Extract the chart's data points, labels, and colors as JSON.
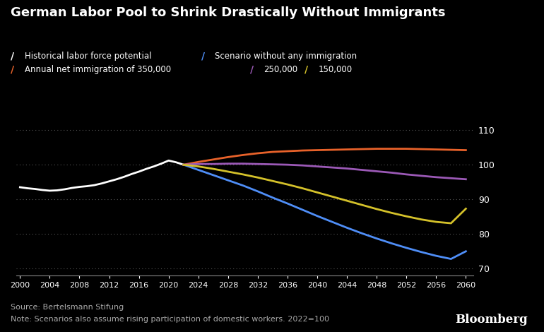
{
  "title": "German Labor Pool to Shrink Drastically Without Immigrants",
  "background_color": "#000000",
  "text_color": "#ffffff",
  "source_text": "Source: Bertelsmann Stifung",
  "note_text": "Note: Scenarios also assume rising participation of domestic workers. 2022=100",
  "bloomberg_text": "Bloomberg",
  "ylim": [
    68,
    114
  ],
  "yticks": [
    70,
    80,
    90,
    100,
    110
  ],
  "xlabel_years": [
    2000,
    2004,
    2008,
    2012,
    2016,
    2020,
    2024,
    2028,
    2032,
    2036,
    2040,
    2044,
    2048,
    2052,
    2056,
    2060
  ],
  "legend": [
    {
      "label": "Historical labor force potential",
      "color": "#ffffff"
    },
    {
      "label": "Scenario without any immigration",
      "color": "#4f8ef7"
    },
    {
      "label": "Annual net immigration of 350,000",
      "color": "#e8622a"
    },
    {
      "label": "250,000",
      "color": "#9b59b6"
    },
    {
      "label": "150,000",
      "color": "#d4c12a"
    }
  ],
  "historical": {
    "x": [
      2000,
      2001,
      2002,
      2003,
      2004,
      2005,
      2006,
      2007,
      2008,
      2009,
      2010,
      2011,
      2012,
      2013,
      2014,
      2015,
      2016,
      2017,
      2018,
      2019,
      2020,
      2021,
      2022
    ],
    "y": [
      93.5,
      93.2,
      93.0,
      92.7,
      92.5,
      92.6,
      92.9,
      93.3,
      93.6,
      93.8,
      94.1,
      94.6,
      95.2,
      95.8,
      96.5,
      97.3,
      98.0,
      98.8,
      99.5,
      100.3,
      101.2,
      100.7,
      100.0
    ]
  },
  "no_immigration": {
    "x": [
      2022,
      2024,
      2026,
      2028,
      2030,
      2032,
      2034,
      2036,
      2038,
      2040,
      2042,
      2044,
      2046,
      2048,
      2050,
      2052,
      2054,
      2056,
      2058,
      2060
    ],
    "y": [
      100.0,
      98.5,
      97.0,
      95.5,
      94.0,
      92.3,
      90.5,
      88.8,
      87.0,
      85.2,
      83.5,
      81.8,
      80.2,
      78.7,
      77.3,
      76.0,
      74.8,
      73.7,
      72.8,
      75.0
    ]
  },
  "imm_350k": {
    "x": [
      2022,
      2024,
      2026,
      2028,
      2030,
      2032,
      2034,
      2036,
      2038,
      2040,
      2042,
      2044,
      2046,
      2048,
      2050,
      2052,
      2054,
      2056,
      2058,
      2060
    ],
    "y": [
      100.0,
      100.8,
      101.5,
      102.2,
      102.8,
      103.3,
      103.7,
      103.9,
      104.1,
      104.2,
      104.3,
      104.4,
      104.5,
      104.6,
      104.6,
      104.6,
      104.5,
      104.4,
      104.3,
      104.2
    ]
  },
  "imm_250k": {
    "x": [
      2022,
      2024,
      2026,
      2028,
      2030,
      2032,
      2034,
      2036,
      2038,
      2040,
      2042,
      2044,
      2046,
      2048,
      2050,
      2052,
      2054,
      2056,
      2058,
      2060
    ],
    "y": [
      100.0,
      100.2,
      100.2,
      100.3,
      100.3,
      100.2,
      100.1,
      100.0,
      99.8,
      99.5,
      99.2,
      98.9,
      98.5,
      98.1,
      97.7,
      97.2,
      96.8,
      96.4,
      96.1,
      95.8
    ]
  },
  "imm_150k": {
    "x": [
      2022,
      2024,
      2026,
      2028,
      2030,
      2032,
      2034,
      2036,
      2038,
      2040,
      2042,
      2044,
      2046,
      2048,
      2050,
      2052,
      2054,
      2056,
      2058,
      2060
    ],
    "y": [
      100.0,
      99.5,
      98.8,
      98.0,
      97.2,
      96.3,
      95.3,
      94.3,
      93.2,
      92.0,
      90.8,
      89.6,
      88.4,
      87.2,
      86.1,
      85.1,
      84.2,
      83.5,
      83.1,
      87.3
    ]
  }
}
